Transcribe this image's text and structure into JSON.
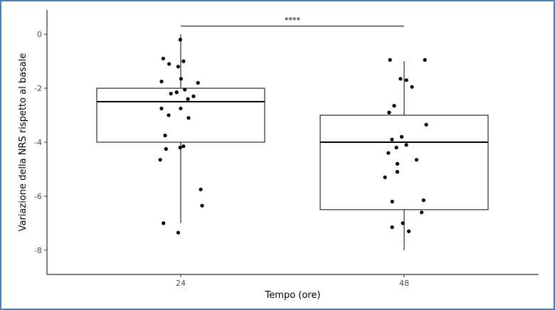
{
  "chart_data": {
    "type": "boxplot",
    "xlabel": "Tempo (ore)",
    "ylabel": "Variazione della NRS rispetto al basale",
    "categories": [
      "24",
      "48"
    ],
    "ylim": [
      -8.9,
      0.9
    ],
    "yticks": [
      0,
      -2,
      -4,
      -6,
      -8
    ],
    "grid": false,
    "boxes": [
      {
        "category": "24",
        "whisker_low": -7,
        "q1": -4,
        "median": -2.5,
        "q3": -2,
        "whisker_high": 0
      },
      {
        "category": "48",
        "whisker_low": -8,
        "q1": -6.5,
        "median": -4,
        "q3": -3,
        "whisker_high": -1
      }
    ],
    "points": [
      {
        "category": "24",
        "values": [
          -0.2,
          -1.0,
          -0.9,
          -1.1,
          -1.2,
          -1.65,
          -1.75,
          -1.8,
          -2.05,
          -2.15,
          -2.2,
          -2.3,
          -2.4,
          -2.75,
          -2.75,
          -3.0,
          -3.1,
          -3.75,
          -4.15,
          -4.2,
          -4.25,
          -4.65,
          -5.75,
          -6.35,
          -7.0,
          -7.35
        ]
      },
      {
        "category": "48",
        "values": [
          -0.95,
          -0.95,
          -1.65,
          -1.7,
          -1.95,
          -2.65,
          -2.9,
          -3.35,
          -3.8,
          -3.9,
          -4.1,
          -4.2,
          -4.4,
          -4.65,
          -4.8,
          -5.1,
          -5.3,
          -6.15,
          -6.2,
          -6.6,
          -7.0,
          -7.15,
          -7.3
        ]
      }
    ],
    "annotation": {
      "text": "****",
      "from": "24",
      "to": "48",
      "y": 0.3
    }
  }
}
